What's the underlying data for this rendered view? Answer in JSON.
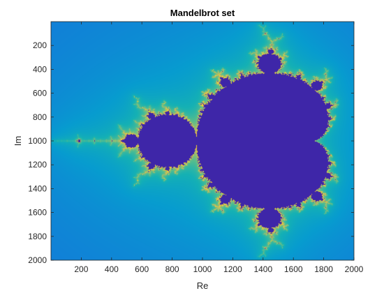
{
  "chart_data": {
    "type": "heatmap",
    "title": "Mandelbrot set",
    "xlabel": "Re",
    "ylabel": "Im",
    "xlim": [
      0,
      2000
    ],
    "ylim": [
      0,
      2000
    ],
    "y_direction": "reversed",
    "x_ticks": [
      200,
      400,
      600,
      800,
      1000,
      1200,
      1400,
      1600,
      1800,
      2000
    ],
    "y_ticks": [
      200,
      400,
      600,
      800,
      1000,
      1200,
      1400,
      1600,
      1800,
      2000
    ],
    "x_tick_labels": [
      "200",
      "400",
      "600",
      "800",
      "1000",
      "1200",
      "1400",
      "1600",
      "1800",
      "2000"
    ],
    "y_tick_labels": [
      "200",
      "400",
      "600",
      "800",
      "1000",
      "1200",
      "1400",
      "1600",
      "1800",
      "2000"
    ],
    "grid": false,
    "legend": "none",
    "colormap": "parula",
    "colors": {
      "set_interior": "#3e26a8",
      "outer_background": "#2f7ee7",
      "boundary_glow": "#f9fb0e",
      "mid_transition": "#32b7c7"
    }
  }
}
